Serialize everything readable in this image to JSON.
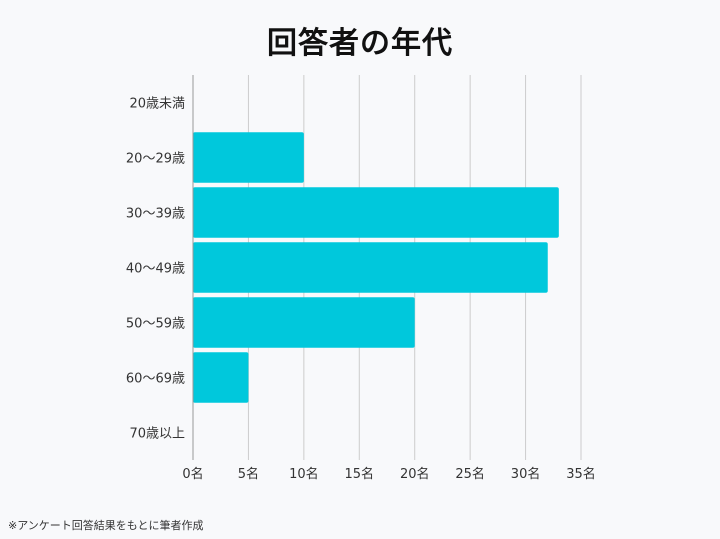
{
  "chart_data": {
    "type": "bar",
    "orientation": "horizontal",
    "title": "回答者の年代",
    "categories": [
      "20歳未満",
      "20〜29歳",
      "30〜39歳",
      "40〜49歳",
      "50〜59歳",
      "60〜69歳",
      "70歳以上"
    ],
    "values": [
      0,
      10,
      33,
      32,
      20,
      5,
      0
    ],
    "xlim": [
      0,
      35
    ],
    "xticks": [
      "0名",
      "5名",
      "10名",
      "15名",
      "20名",
      "25名",
      "30名",
      "35名"
    ],
    "xtick_values": [
      0,
      5,
      10,
      15,
      20,
      25,
      30,
      35
    ],
    "grid": true,
    "bar_color": "#00c8dc"
  },
  "footnote": "※アンケート回答結果をもとに筆者作成"
}
